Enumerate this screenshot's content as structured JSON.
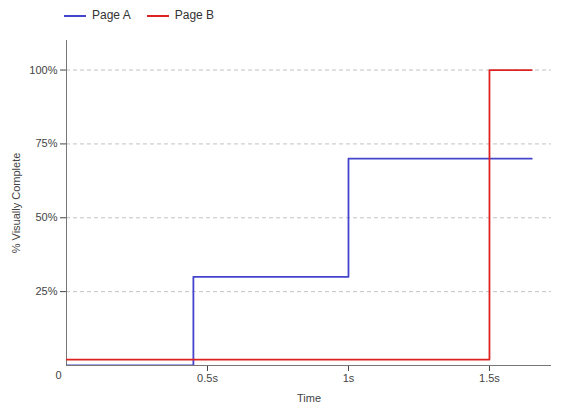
{
  "chart_data": {
    "type": "line",
    "title": "",
    "xlabel": "Time",
    "ylabel": "% Visually Complete",
    "series": [
      {
        "name": "Page A",
        "color": "#4444cc",
        "x": [
          0,
          0.45,
          0.45,
          1.0,
          1.0,
          1.65
        ],
        "values": [
          0,
          0,
          30,
          30,
          70,
          70
        ]
      },
      {
        "name": "Page B",
        "color": "#dd2222",
        "x": [
          0,
          1.5,
          1.5,
          1.65
        ],
        "values": [
          2,
          2,
          100,
          100
        ]
      }
    ],
    "xlim": [
      0,
      1.72
    ],
    "ylim": [
      0,
      110
    ],
    "xticks": [
      {
        "value": 0.5,
        "label": "0.5s"
      },
      {
        "value": 1.0,
        "label": "1s"
      },
      {
        "value": 1.5,
        "label": "1.5s"
      }
    ],
    "yticks": [
      {
        "value": 25,
        "label": "25%"
      },
      {
        "value": 50,
        "label": "50%"
      },
      {
        "value": 75,
        "label": "75%"
      },
      {
        "value": 100,
        "label": "100%"
      }
    ],
    "annotations": [
      {
        "text": "0",
        "x": 0,
        "y": 0
      }
    ],
    "grid": true,
    "legend": "upper left"
  }
}
